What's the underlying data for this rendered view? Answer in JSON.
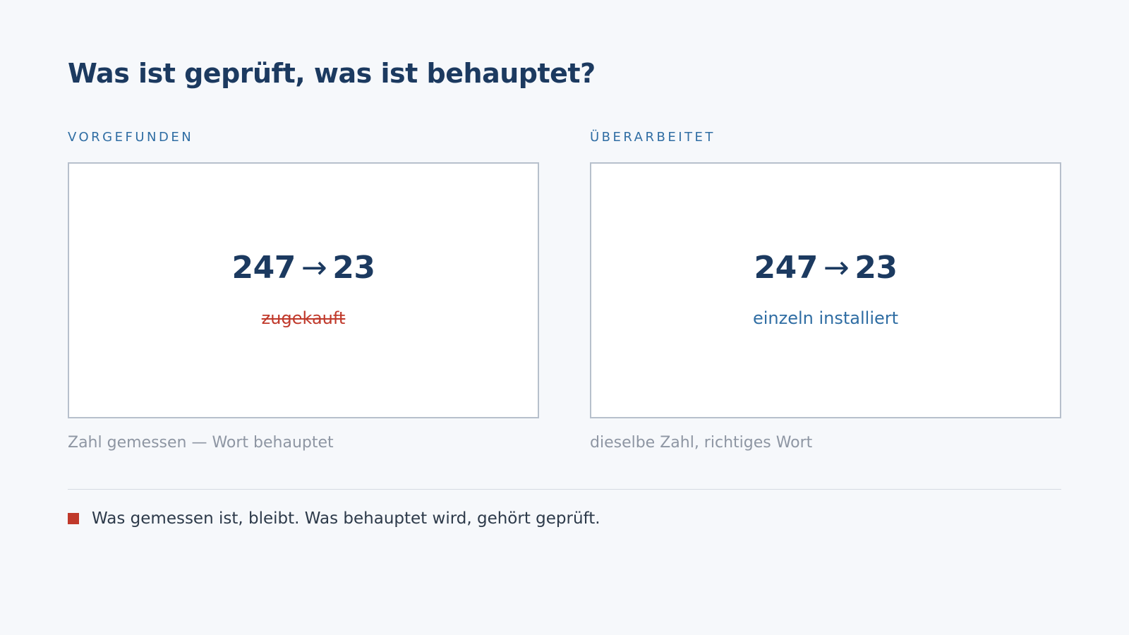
{
  "title": "Was ist geprüft, was ist behauptet?",
  "left": {
    "label": "VORGEFUNDEN",
    "from": "247",
    "arrow": "→",
    "to": "23",
    "word": "zugekauft",
    "word_struck": true,
    "caption": "Zahl gemessen — Wort behauptet"
  },
  "right": {
    "label": "ÜBERARBEITET",
    "from": "247",
    "arrow": "→",
    "to": "23",
    "word": "einzeln installiert",
    "word_struck": false,
    "caption": "dieselbe Zahl, richtiges Wort"
  },
  "note": {
    "text": "Was gemessen ist, bleibt. Was behauptet wird, gehört geprüft.",
    "marker_color": "#c0392b"
  },
  "colors": {
    "heading": "#1c3a60",
    "accent": "#2f6da3",
    "struck": "#c0392b",
    "caption": "#8e96a3",
    "background": "#f6f8fb"
  }
}
